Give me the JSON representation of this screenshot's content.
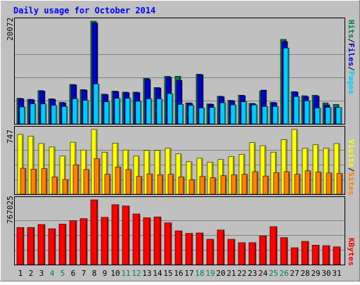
{
  "chart_data": [
    {
      "type": "bar",
      "title": "Daily usage for October 2014",
      "ymax_label": "20072",
      "legend": [
        {
          "label": "Pages",
          "color": "#00ccff"
        },
        {
          "label": "/",
          "color": "#000000"
        },
        {
          "label": "Files",
          "color": "#0000cc"
        },
        {
          "label": "/",
          "color": "#000000"
        },
        {
          "label": "Hits",
          "color": "#008040"
        }
      ],
      "ylim": [
        0,
        20072
      ],
      "categories": [
        "1",
        "2",
        "3",
        "4",
        "5",
        "6",
        "7",
        "8",
        "9",
        "10",
        "11",
        "12",
        "13",
        "14",
        "15",
        "16",
        "17",
        "18",
        "19",
        "20",
        "21",
        "22",
        "23",
        "24",
        "25",
        "26",
        "27",
        "28",
        "29",
        "30",
        "31"
      ],
      "weekend_days": [
        "4",
        "5",
        "11",
        "12",
        "18",
        "19",
        "25",
        "26"
      ],
      "series": [
        {
          "name": "Hits",
          "color": "#008040",
          "values": [
            5000,
            4800,
            6500,
            4900,
            4200,
            7700,
            6700,
            20072,
            5800,
            6400,
            6200,
            6200,
            8900,
            7100,
            9300,
            9300,
            4100,
            9700,
            3900,
            5400,
            4600,
            5600,
            4000,
            6400,
            4200,
            16500,
            6300,
            5500,
            5600,
            4100,
            3800
          ]
        },
        {
          "name": "Files",
          "color": "#0000cc",
          "values": [
            4900,
            4700,
            6400,
            4800,
            4100,
            7600,
            6600,
            19700,
            5700,
            6300,
            6100,
            6100,
            8700,
            7000,
            9100,
            8500,
            4000,
            9600,
            3800,
            5300,
            4500,
            5500,
            3900,
            6600,
            4100,
            16100,
            6200,
            5300,
            5400,
            3700,
            3200
          ]
        },
        {
          "name": "Pages",
          "color": "#00ccff",
          "values": [
            3300,
            3900,
            3900,
            3600,
            3400,
            4900,
            4600,
            7800,
            4300,
            5000,
            5000,
            4400,
            4900,
            4900,
            5900,
            3800,
            3600,
            3100,
            3200,
            4100,
            3700,
            4300,
            3700,
            3400,
            3400,
            14800,
            5300,
            4500,
            3100,
            3200,
            3200
          ]
        }
      ]
    },
    {
      "type": "bar",
      "ymax_label": "747",
      "legend": [
        {
          "label": "Sites",
          "color": "#ff8000"
        },
        {
          "label": "/",
          "color": "#000000"
        },
        {
          "label": "Visits",
          "color": "#ffff00"
        }
      ],
      "ylim": [
        0,
        747
      ],
      "series": [
        {
          "name": "Visits",
          "color": "#ffff00",
          "values": [
            690,
            670,
            585,
            545,
            440,
            600,
            510,
            747,
            485,
            590,
            510,
            440,
            505,
            505,
            530,
            465,
            375,
            415,
            370,
            400,
            435,
            460,
            595,
            560,
            485,
            630,
            747,
            530,
            570,
            530,
            585
          ]
        },
        {
          "name": "Sites",
          "color": "#ff8000",
          "values": [
            300,
            290,
            295,
            200,
            170,
            340,
            285,
            410,
            230,
            315,
            285,
            205,
            235,
            225,
            230,
            200,
            165,
            205,
            190,
            215,
            225,
            230,
            260,
            210,
            250,
            260,
            230,
            270,
            255,
            245,
            240
          ]
        }
      ]
    },
    {
      "type": "bar",
      "ymax_label": "767025",
      "legend": [
        {
          "label": "KBytes",
          "color": "#ff0000"
        }
      ],
      "ylim": [
        0,
        767025
      ],
      "series": [
        {
          "name": "KBytes",
          "color": "#ff0000",
          "values": [
            440000,
            440000,
            475000,
            425000,
            480000,
            520000,
            545000,
            767025,
            560000,
            710000,
            695000,
            600000,
            555000,
            565000,
            495000,
            400000,
            370000,
            375000,
            300000,
            410000,
            300000,
            260000,
            260000,
            340000,
            450000,
            320000,
            200000,
            275000,
            230000,
            225000,
            210000
          ]
        }
      ]
    }
  ]
}
